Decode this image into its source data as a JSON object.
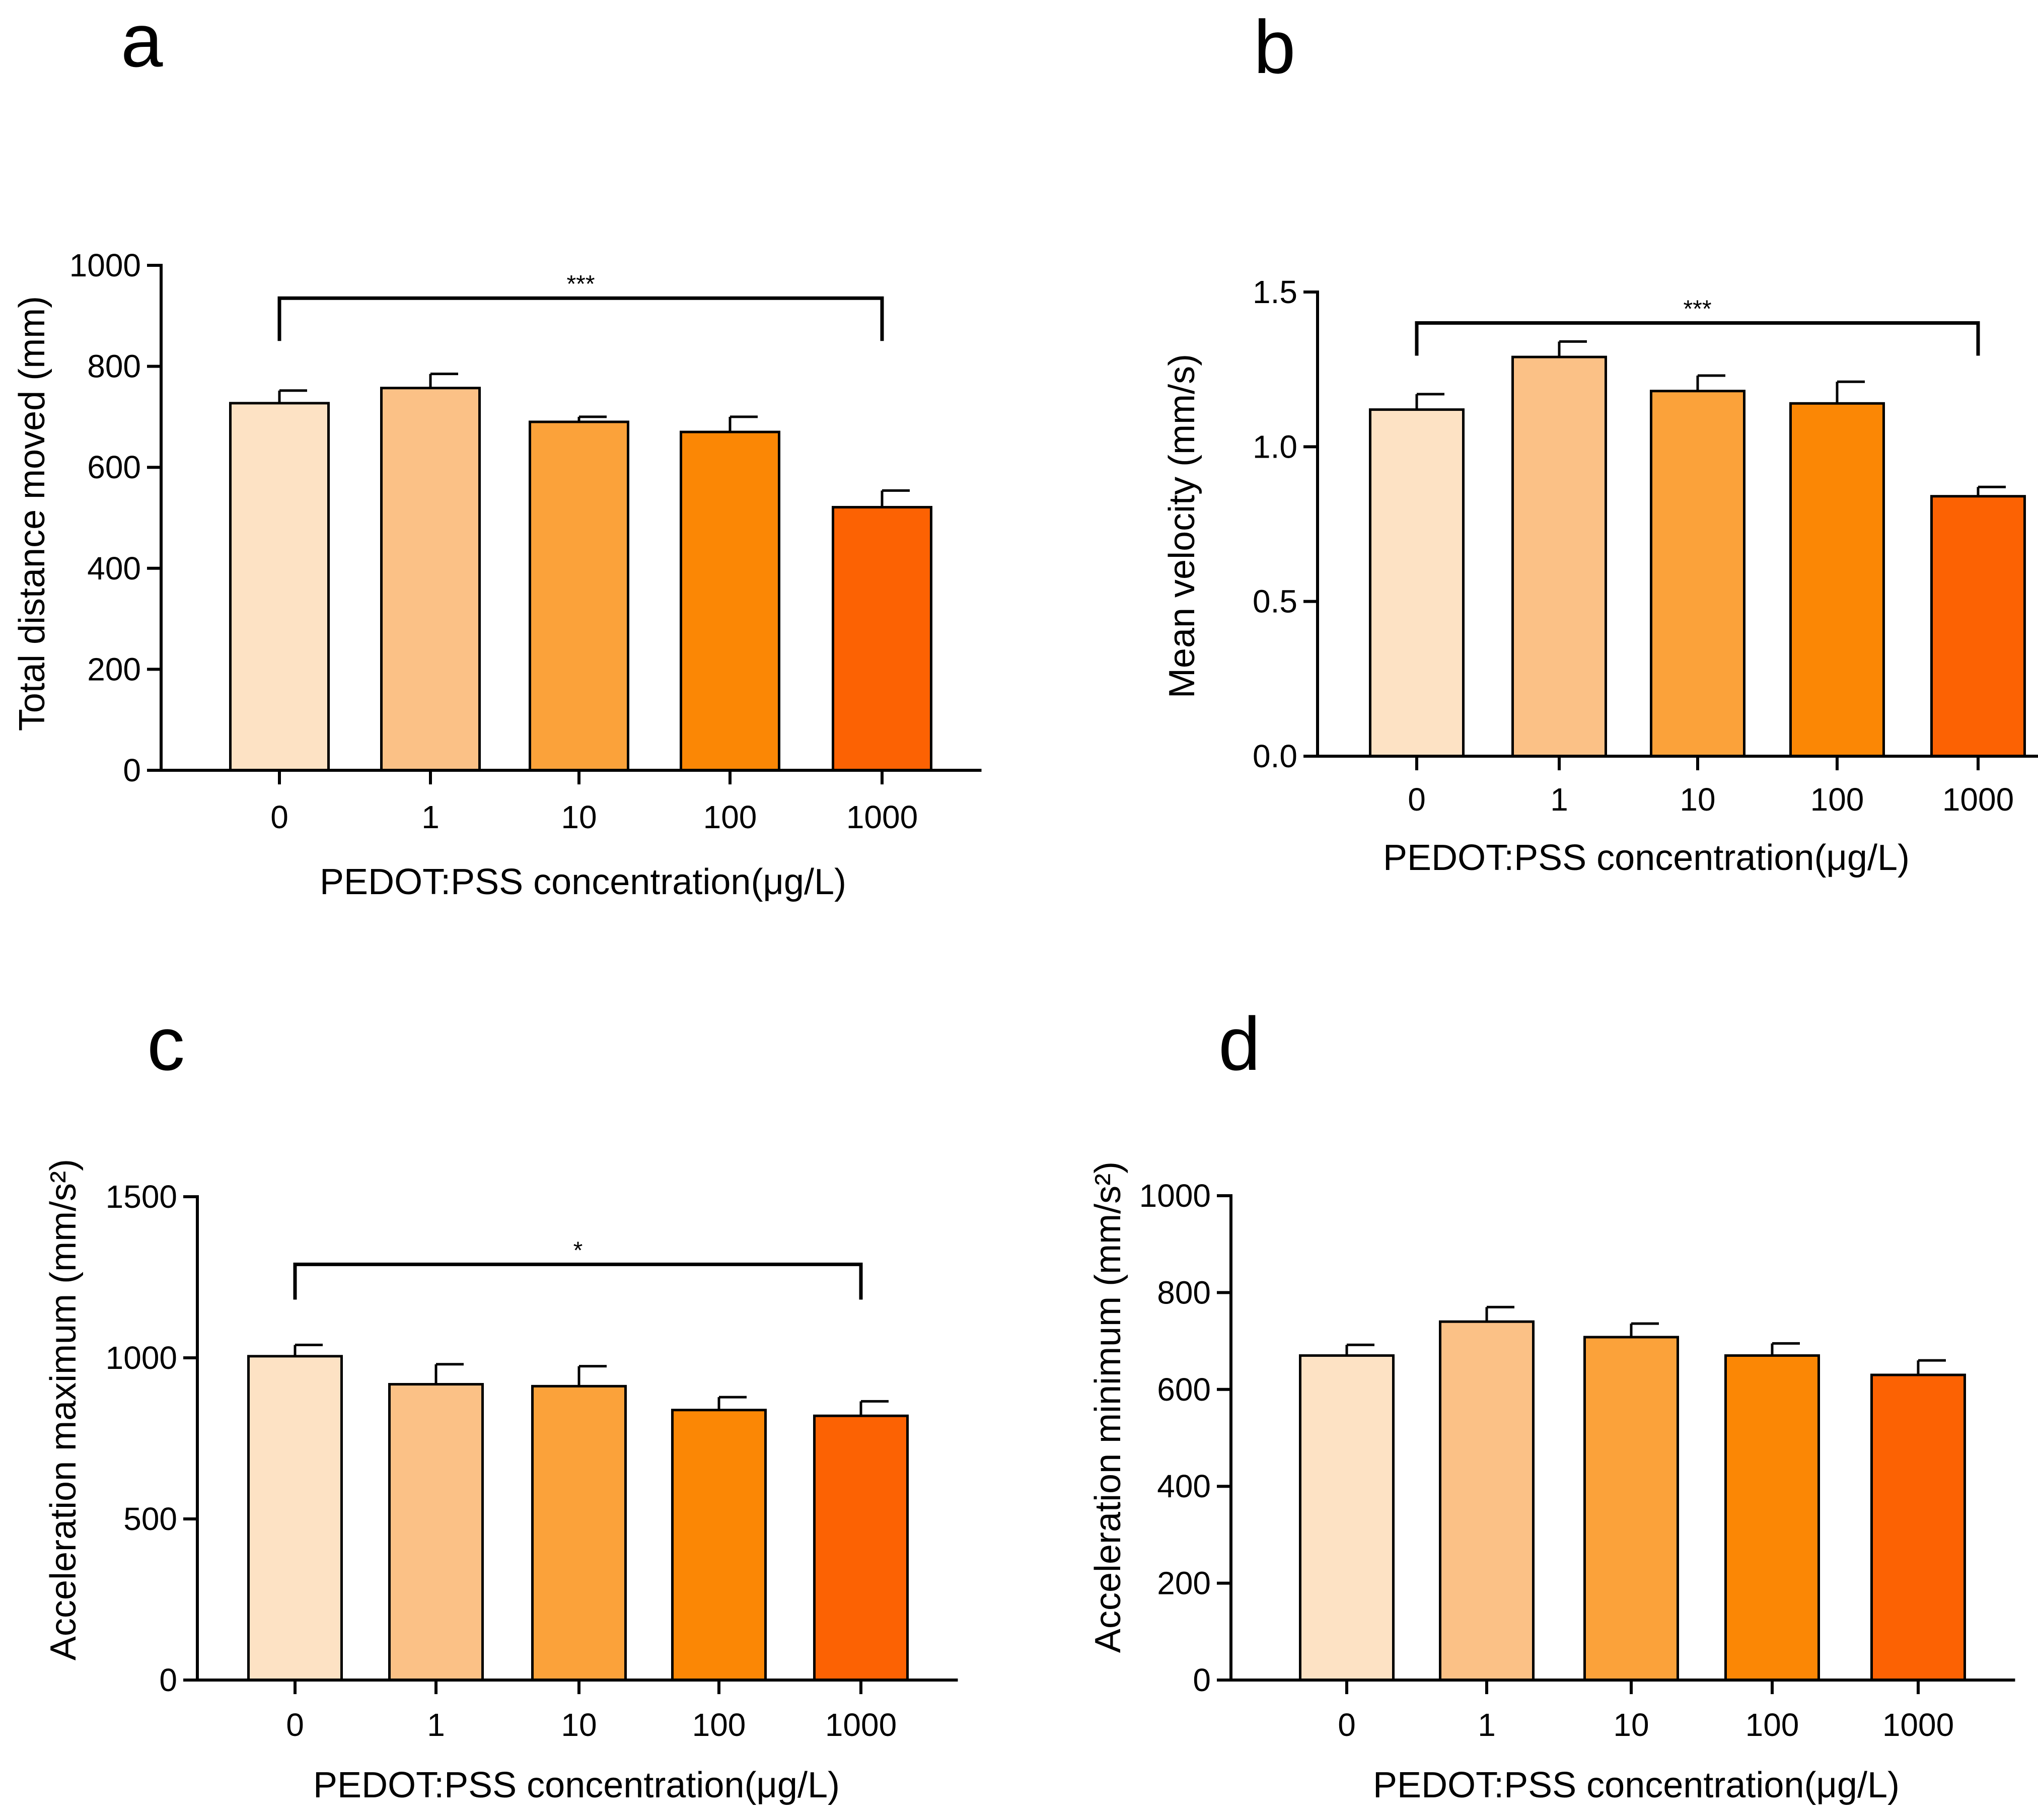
{
  "colors": {
    "bar_fills": [
      "#fde2c4",
      "#fbc186",
      "#fba23a",
      "#fb8705",
      "#fc6203"
    ],
    "stroke": "#000000"
  },
  "chart_data": [
    {
      "id": "a",
      "panel_label": "a",
      "type": "bar",
      "categories": [
        "0",
        "1",
        "10",
        "100",
        "1000"
      ],
      "values": [
        727,
        757,
        690,
        670,
        521
      ],
      "errors": [
        25,
        28,
        10,
        30,
        33
      ],
      "xlabel": "PEDOT:PSS concentration(μg/L)",
      "ylabel": "Total distance moved (mm)",
      "ylim": [
        0,
        1000
      ],
      "yticks": [
        0,
        200,
        400,
        600,
        800,
        1000
      ],
      "ytick_labels": [
        "0",
        "200",
        "400",
        "600",
        "800",
        "1000"
      ],
      "significance": {
        "label": "***",
        "from": "0",
        "to": "1000",
        "y": 935
      }
    },
    {
      "id": "b",
      "panel_label": "b",
      "type": "bar",
      "categories": [
        "0",
        "1",
        "10",
        "100",
        "1000"
      ],
      "values": [
        1.12,
        1.29,
        1.18,
        1.14,
        0.84
      ],
      "errors": [
        0.05,
        0.05,
        0.05,
        0.07,
        0.03
      ],
      "xlabel": "PEDOT:PSS concentration(μg/L)",
      "ylabel": "Mean velocity (mm/s)",
      "ylim": [
        0,
        1.5
      ],
      "yticks": [
        0,
        0.5,
        1.0,
        1.5
      ],
      "ytick_labels": [
        "0.0",
        "0.5",
        "1.0",
        "1.5"
      ],
      "significance": {
        "label": "***",
        "from": "0",
        "to": "1000",
        "y": 1.4
      }
    },
    {
      "id": "c",
      "panel_label": "c",
      "type": "bar",
      "categories": [
        "0",
        "1",
        "10",
        "100",
        "1000"
      ],
      "values": [
        1005,
        918,
        912,
        838,
        820
      ],
      "errors": [
        35,
        62,
        62,
        40,
        45
      ],
      "xlabel": "PEDOT:PSS concentration(μg/L)",
      "ylabel": "Acceleration maximum (mm/s²)",
      "ylim": [
        0,
        1500
      ],
      "yticks": [
        0,
        500,
        1000,
        1500
      ],
      "ytick_labels": [
        "0",
        "500",
        "1000",
        "1500"
      ],
      "significance": {
        "label": "*",
        "from": "0",
        "to": "1000",
        "y": 1290
      }
    },
    {
      "id": "d",
      "panel_label": "d",
      "type": "bar",
      "categories": [
        "0",
        "1",
        "10",
        "100",
        "1000"
      ],
      "values": [
        670,
        740,
        708,
        670,
        630
      ],
      "errors": [
        22,
        30,
        28,
        25,
        30
      ],
      "xlabel": "PEDOT:PSS concentration(μg/L)",
      "ylabel": "Acceleration minimum (mm/s²)",
      "ylim": [
        0,
        1000
      ],
      "yticks": [
        0,
        200,
        400,
        600,
        800,
        1000
      ],
      "ytick_labels": [
        "0",
        "200",
        "400",
        "600",
        "800",
        "1000"
      ],
      "significance": null
    }
  ]
}
